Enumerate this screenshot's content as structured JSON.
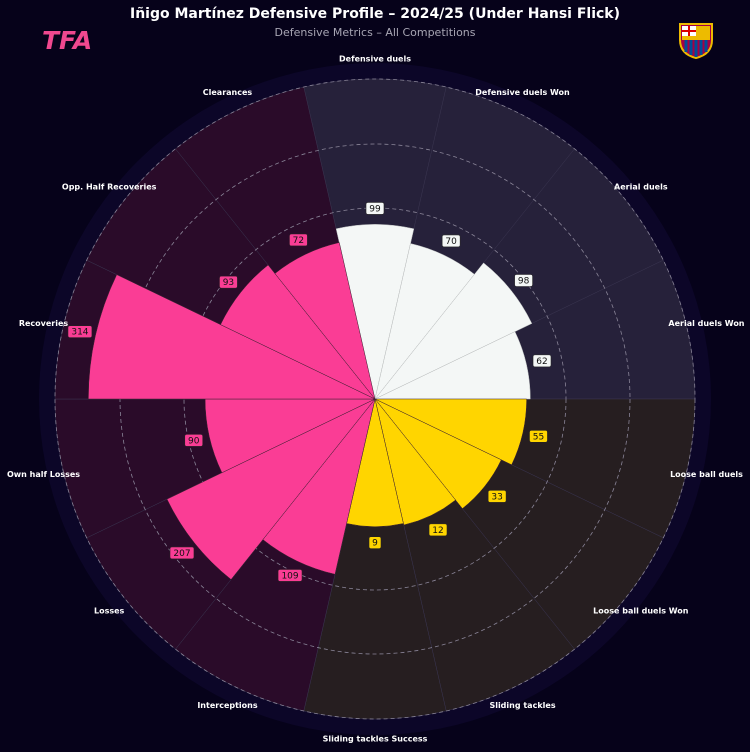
{
  "chart_data": {
    "type": "polar-bar",
    "title": "Iñigo Martínez Defensive Profile – 2024/25 (Under Hansi Flick)",
    "subtitle": "Defensive Metrics – All Competitions",
    "brand": "TFA",
    "categories": [
      "Defensive duels",
      "Defensive duels Won",
      "Aerial duels",
      "Aerial duels Won",
      "Loose ball duels",
      "Loose ball duels Won",
      "Sliding tackles",
      "Sliding tackles Success",
      "Interceptions",
      "Losses",
      "Own half Losses",
      "Recoveries",
      "Opp. Half Recoveries",
      "Clearances"
    ],
    "values": [
      99,
      70,
      98,
      62,
      55,
      33,
      12,
      9,
      109,
      207,
      90,
      314,
      93,
      72
    ],
    "colors": [
      "#f4f7f6",
      "#f4f7f6",
      "#f4f7f6",
      "#f4f7f6",
      "#ffd500",
      "#ffd500",
      "#ffd500",
      "#ffd500",
      "#fa3d95",
      "#fa3d95",
      "#fa3d95",
      "#fa3d95",
      "#fa3d95",
      "#fa3d95"
    ],
    "sector_colors": [
      "#26213a",
      "#26213a",
      "#26213a",
      "#26213a",
      "#261e20",
      "#261e20",
      "#261e20",
      "#261e20",
      "#2a0b29",
      "#2a0b29",
      "#2a0b29",
      "#2a0b29",
      "#2a0b29",
      "#2a0b29"
    ],
    "rlim": [
      -236,
      378
    ]
  }
}
